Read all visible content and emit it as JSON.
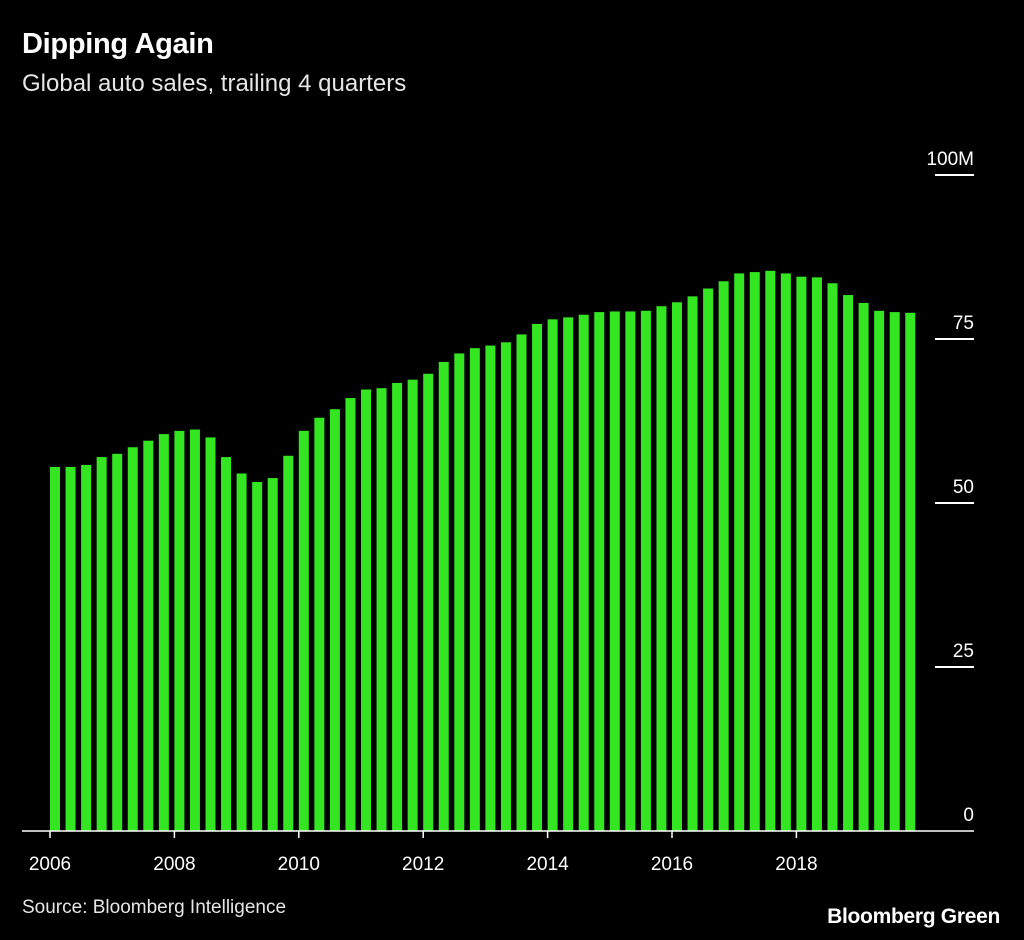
{
  "header": {
    "title": "Dipping Again",
    "subtitle": "Global auto sales, trailing 4 quarters"
  },
  "footer": {
    "source": "Source: Bloomberg Intelligence",
    "brand": "Bloomberg Green"
  },
  "colors": {
    "background": "#000000",
    "bar": "#33e621",
    "text": "#ffffff"
  },
  "chart_data": {
    "type": "bar",
    "title": "Dipping Again",
    "subtitle": "Global auto sales, trailing 4 quarters",
    "ylim": [
      0,
      100
    ],
    "y_ticks": [
      0,
      25,
      50,
      75,
      100
    ],
    "y_tick_labels": [
      "0",
      "25",
      "50",
      "75",
      "100M"
    ],
    "y_axis_position": "right",
    "x_tick_labels": [
      "2006",
      "2008",
      "2010",
      "2012",
      "2014",
      "2016",
      "2018"
    ],
    "x_tick_bar_index": [
      0,
      8,
      16,
      24,
      32,
      40,
      48
    ],
    "grid": false,
    "series": [
      {
        "values": [
          55.5,
          55.5,
          55.8,
          57.0,
          57.5,
          58.5,
          59.5,
          60.5,
          61.0,
          61.2,
          60.0,
          57.0,
          54.5,
          53.2,
          53.8,
          57.2,
          61.0,
          63.0,
          64.3,
          66.0,
          67.3,
          67.5,
          68.3,
          68.8,
          69.7,
          71.5,
          72.8,
          73.6,
          74.0,
          74.5,
          75.7,
          77.3,
          78.0,
          78.3,
          78.7,
          79.1,
          79.2,
          79.2,
          79.3,
          80.0,
          80.6,
          81.5,
          82.7,
          83.8,
          85.0,
          85.2,
          85.4,
          85.0,
          84.5,
          84.4,
          83.5,
          81.7,
          80.5,
          79.3,
          79.1,
          79.0
        ]
      }
    ]
  }
}
